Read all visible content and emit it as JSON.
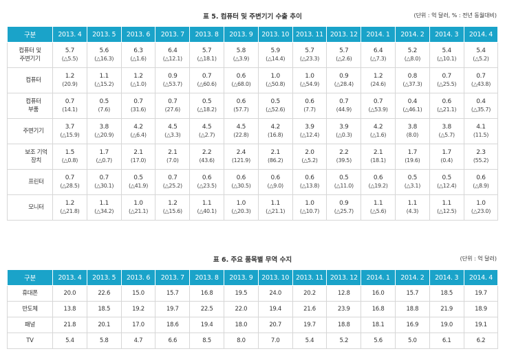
{
  "table5": {
    "title": "표 5. 컴퓨터 및 주변기기 수출 추이",
    "unit": "(단위 : 억 달러, % : 전년 동월대비)",
    "header": [
      "구분",
      "2013. 4",
      "2013. 5",
      "2013. 6",
      "2013. 7",
      "2013. 8",
      "2013. 9",
      "2013. 10",
      "2013. 11",
      "2013. 12",
      "2014. 1",
      "2014. 2",
      "2014. 3",
      "2014. 4"
    ],
    "rows": [
      {
        "label": "컴퓨터 및\n주변기기",
        "level": 0,
        "values": [
          "5.7",
          "5.6",
          "6.3",
          "6.4",
          "5.7",
          "5.8",
          "5.9",
          "5.7",
          "5.7",
          "6.4",
          "5.2",
          "5.4",
          "5.4"
        ],
        "changes": [
          "(△5.5)",
          "(△16.3)",
          "(△1.6)",
          "(△12.1)",
          "(△18.1)",
          "(△3.9)",
          "(△14.4)",
          "(△23.3)",
          "(△2.6)",
          "(△7.3)",
          "(△8.0)",
          "(△10.1)",
          "(△5.2)"
        ]
      },
      {
        "label": "컴퓨터",
        "level": 1,
        "values": [
          "1.2",
          "1.1",
          "1.2",
          "0.9",
          "0.7",
          "0.6",
          "1.0",
          "1.0",
          "0.9",
          "1.2",
          "0.8",
          "0.7",
          "0.7"
        ],
        "changes": [
          "(20.9)",
          "(△15.2)",
          "(△1.0)",
          "(△53.7)",
          "(△60.6)",
          "(△68.0)",
          "(△50.8)",
          "(△54.9)",
          "(△28.4)",
          "(24.6)",
          "(△37.3)",
          "(△25.5)",
          "(△43.8)"
        ]
      },
      {
        "label": "컴퓨터\n부품",
        "level": 1,
        "values": [
          "0.7",
          "0.5",
          "0.7",
          "0.7",
          "0.5",
          "0.6",
          "0.5",
          "0.6",
          "0.7",
          "0.7",
          "0.4",
          "0.6",
          "0.4"
        ],
        "changes": [
          "(14.1)",
          "(7.6)",
          "(31.6)",
          "(27.6)",
          "(△18.2)",
          "(57.7)",
          "(△52.6)",
          "(7.7)",
          "(44.9)",
          "(△53.9)",
          "(△46.1)",
          "(△21.1)",
          "(△35.7)"
        ]
      },
      {
        "label": "주변기기",
        "level": 1,
        "values": [
          "3.7",
          "3.8",
          "4.2",
          "4.5",
          "4.5",
          "4.5",
          "4.2",
          "3.9",
          "3.9",
          "4.2",
          "3.8",
          "3.8",
          "4.1"
        ],
        "changes": [
          "(△15.9)",
          "(△20.9)",
          "(△6.4)",
          "(△3.3)",
          "(△2.7)",
          "(22.8)",
          "(16.8)",
          "(△12.4)",
          "(△0.3)",
          "(△1.6)",
          "(8.0)",
          "(△5.7)",
          "(11.5)"
        ]
      },
      {
        "label": "보조 기억\n장치",
        "level": 2,
        "values": [
          "1.5",
          "1.7",
          "2.1",
          "2.1",
          "2.2",
          "2.4",
          "2.1",
          "2.0",
          "2.2",
          "2.1",
          "1.7",
          "1.7",
          "2.3"
        ],
        "changes": [
          "(△0.8)",
          "(△0.7)",
          "(17.0)",
          "(7.0)",
          "(43.6)",
          "(121.9)",
          "(86.2)",
          "(△5.2)",
          "(39.5)",
          "(18.1)",
          "(19.6)",
          "(0.4)",
          "(55.2)"
        ]
      },
      {
        "label": "프린터",
        "level": 2,
        "values": [
          "0.7",
          "0.7",
          "0.5",
          "0.7",
          "0.6",
          "0.6",
          "0.6",
          "0.6",
          "0.5",
          "0.6",
          "0.5",
          "0.5",
          "0.6"
        ],
        "changes": [
          "(△28.5)",
          "(△30.1)",
          "(△41.9)",
          "(△25.2)",
          "(△23.5)",
          "(△30.5)",
          "(△9.0)",
          "(△13.8)",
          "(△11.0)",
          "(△19.2)",
          "(△3.1)",
          "(△12.4)",
          "(△8.9)"
        ]
      },
      {
        "label": "모니터",
        "level": 2,
        "values": [
          "1.2",
          "1.1",
          "1.0",
          "1.2",
          "1.1",
          "1.0",
          "1.1",
          "1.0",
          "0.9",
          "1.1",
          "1.1",
          "1.1",
          "1.0"
        ],
        "changes": [
          "(△21.8)",
          "(△34.2)",
          "(△21.1)",
          "(△15.6)",
          "(△40.1)",
          "(△20.3)",
          "(△21.1)",
          "(△10.7)",
          "(△25.7)",
          "(△5.6)",
          "(4.3)",
          "(△12.5)",
          "(△23.0)"
        ]
      }
    ]
  },
  "table6": {
    "title": "표 6. 주요 품목별 무역 수지",
    "unit": "(단위 : 억 달러)",
    "header": [
      "구분",
      "2013. 4",
      "2013. 5",
      "2013. 6",
      "2013. 7",
      "2013. 8",
      "2013. 9",
      "2013. 10",
      "2013. 11",
      "2013. 12",
      "2014. 1",
      "2014. 2",
      "2014. 3",
      "2014. 4"
    ],
    "rows": [
      {
        "label": "휴대폰",
        "values": [
          "20.0",
          "22.6",
          "15.0",
          "15.7",
          "16.8",
          "19.5",
          "24.0",
          "20.2",
          "12.8",
          "16.0",
          "15.7",
          "18.5",
          "19.7"
        ]
      },
      {
        "label": "반도체",
        "values": [
          "13.8",
          "18.5",
          "19.2",
          "19.7",
          "22.5",
          "22.0",
          "19.4",
          "21.6",
          "23.9",
          "16.8",
          "18.8",
          "21.9",
          "18.9"
        ]
      },
      {
        "label": "패널",
        "values": [
          "21.8",
          "20.1",
          "17.0",
          "18.6",
          "19.4",
          "18.0",
          "20.7",
          "19.7",
          "18.8",
          "18.1",
          "16.9",
          "19.0",
          "19.1"
        ]
      },
      {
        "label": "TV",
        "values": [
          "5.4",
          "5.8",
          "4.7",
          "6.6",
          "8.5",
          "8.0",
          "7.0",
          "5.4",
          "5.2",
          "5.6",
          "5.0",
          "6.1",
          "6.2"
        ]
      }
    ]
  }
}
